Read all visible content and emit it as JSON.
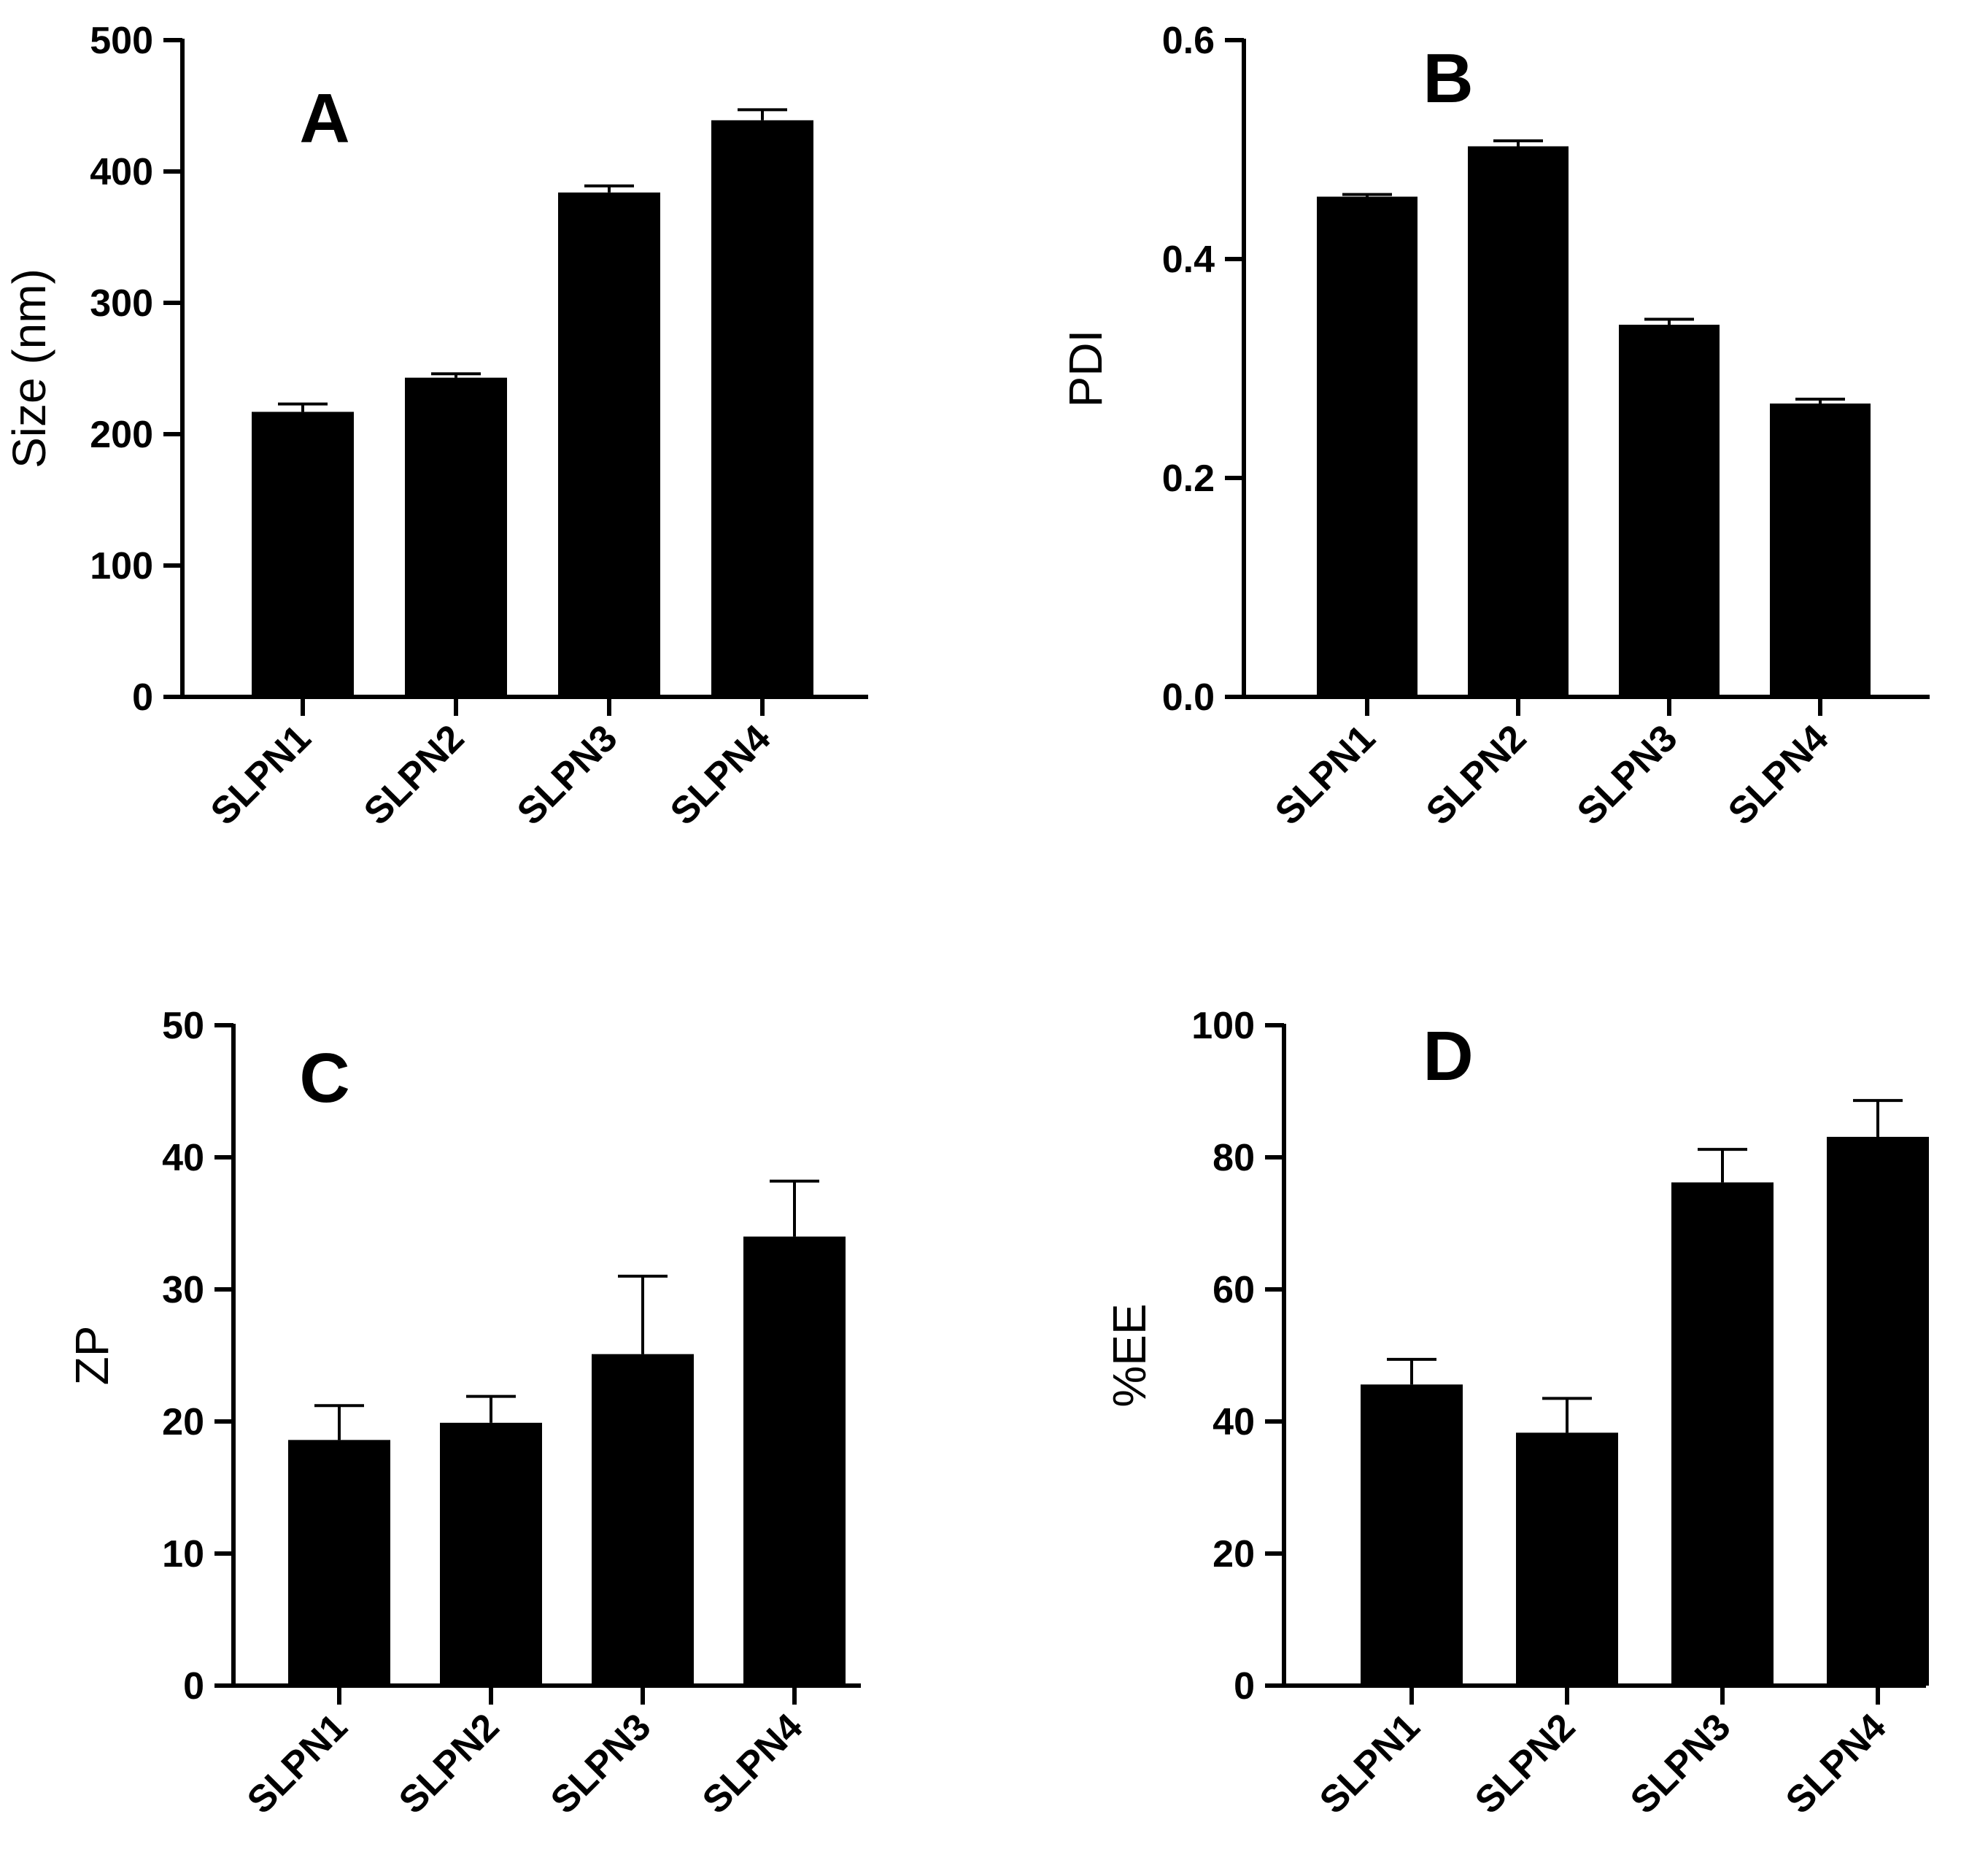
{
  "colors": {
    "bar": "#000000",
    "axis": "#000000",
    "error_bar": "#000000",
    "background": "#ffffff"
  },
  "chart_data": [
    {
      "panel": "A",
      "type": "bar",
      "categories": [
        "SLPN1",
        "SLPN2",
        "SLPN3",
        "SLPN4"
      ],
      "values": [
        217,
        243,
        384,
        439
      ],
      "errors": [
        6,
        3,
        5,
        8
      ],
      "title": "",
      "xlabel": "",
      "ylabel": "Size (nm)",
      "ylim": [
        0,
        500
      ],
      "yticks": [
        0,
        100,
        200,
        300,
        400,
        500
      ],
      "ytick_labels": [
        "0",
        "100",
        "200",
        "300",
        "400",
        "500"
      ],
      "grid": false
    },
    {
      "panel": "B",
      "type": "bar",
      "categories": [
        "SLPN1",
        "SLPN2",
        "SLPN3",
        "SLPN4"
      ],
      "values": [
        0.457,
        0.503,
        0.34,
        0.268
      ],
      "errors": [
        0.002,
        0.005,
        0.005,
        0.004
      ],
      "title": "",
      "xlabel": "",
      "ylabel": "PDI",
      "ylim": [
        0,
        0.6
      ],
      "yticks": [
        0,
        0.2,
        0.4,
        0.6
      ],
      "ytick_labels": [
        "0.0",
        "0.2",
        "0.4",
        "0.6"
      ],
      "grid": false
    },
    {
      "panel": "C",
      "type": "bar",
      "categories": [
        "SLPN1",
        "SLPN2",
        "SLPN3",
        "SLPN4"
      ],
      "values": [
        18.6,
        19.9,
        25.1,
        34
      ],
      "errors": [
        2.6,
        2.0,
        5.9,
        4.2
      ],
      "title": "",
      "xlabel": "",
      "ylabel": "ZP",
      "ylim": [
        0,
        50
      ],
      "yticks": [
        0,
        10,
        20,
        30,
        40,
        50
      ],
      "ytick_labels": [
        "0",
        "10",
        "20",
        "30",
        "40",
        "50"
      ],
      "grid": false
    },
    {
      "panel": "D",
      "type": "bar",
      "categories": [
        "SLPN1",
        "SLPN2",
        "SLPN3",
        "SLPN4"
      ],
      "values": [
        45.6,
        38.3,
        76.2,
        83.1
      ],
      "errors": [
        3.8,
        5.2,
        5.0,
        5.5
      ],
      "title": "",
      "xlabel": "",
      "ylabel": "%EE",
      "ylim": [
        0,
        100
      ],
      "yticks": [
        0,
        20,
        40,
        60,
        80,
        100
      ],
      "ytick_labels": [
        "0",
        "20",
        "40",
        "60",
        "80",
        "100"
      ],
      "grid": false
    }
  ]
}
